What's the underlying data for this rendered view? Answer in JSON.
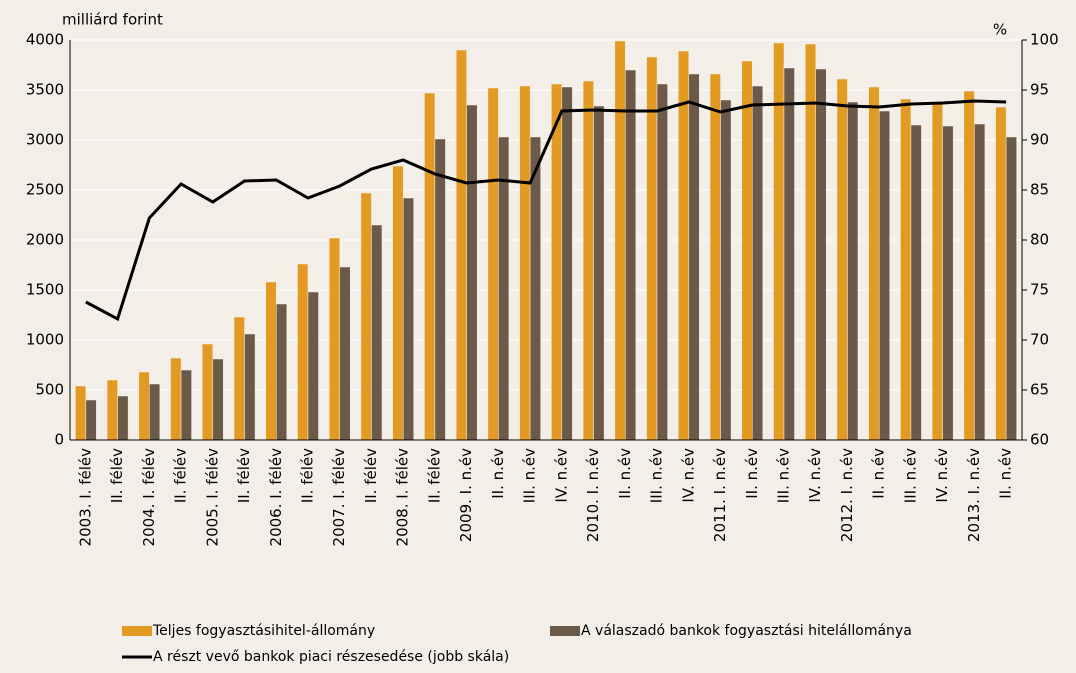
{
  "chart_data": {
    "type": "bar-line",
    "y_label": "milliárd forint",
    "y2_label": "%",
    "categories": [
      "2003. I. félév",
      "II. félév",
      "2004. I. félév",
      "II. félév",
      "2005. I. félév",
      "II. félév",
      "2006. I. félév",
      "II. félév",
      "2007. I. félév",
      "II. félév",
      "2008. I. félév",
      "II. félév",
      "2009. I. n.év",
      "II. n.év",
      "III. n.év",
      "IV. n.év",
      "2010. I. n.év",
      "II. n.év",
      "III. n.év",
      "IV. n.év",
      "2011. I. n.év",
      "II. n.év",
      "III. n.év",
      "IV. n.év",
      "2012. I. n.év",
      "II. n.év",
      "III. n.év",
      "IV. n.év",
      "2013. I. n.év",
      "II. n.év"
    ],
    "series": [
      {
        "name": "Teljes fogyasztásihitel-állomány",
        "type": "bar",
        "color": "#e39a22",
        "values": [
          540,
          600,
          680,
          820,
          960,
          1230,
          1580,
          1760,
          2020,
          2470,
          2740,
          3470,
          3900,
          3520,
          3540,
          3560,
          3590,
          3990,
          3830,
          3890,
          3660,
          3790,
          3970,
          3960,
          3610,
          3530,
          3410,
          3380,
          3490,
          3330
        ]
      },
      {
        "name": "A válaszadó bankok fogyasztási hitelállománya",
        "type": "bar",
        "color": "#6b5949",
        "values": [
          400,
          440,
          560,
          700,
          810,
          1060,
          1360,
          1480,
          1730,
          2150,
          2420,
          3010,
          3350,
          3030,
          3030,
          3530,
          3340,
          3700,
          3560,
          3660,
          3400,
          3540,
          3720,
          3710,
          3380,
          3290,
          3150,
          3140,
          3160,
          3030
        ]
      },
      {
        "name": "A részt vevő bankok piaci részesedése (jobb skála)",
        "type": "line",
        "axis": "y2",
        "color": "#000000",
        "values": [
          73.8,
          72.1,
          82.2,
          85.6,
          83.8,
          85.9,
          86.0,
          84.2,
          85.4,
          87.1,
          88.0,
          86.6,
          85.7,
          86.0,
          85.7,
          92.9,
          93.0,
          92.9,
          92.9,
          93.8,
          92.8,
          93.5,
          93.6,
          93.7,
          93.4,
          93.3,
          93.6,
          93.7,
          93.9,
          93.8
        ]
      }
    ],
    "ylim": [
      0,
      4000
    ],
    "yticks": [
      0,
      500,
      1000,
      1500,
      2000,
      2500,
      3000,
      3500,
      4000
    ],
    "y2lim": [
      60,
      100
    ],
    "y2ticks": [
      60,
      65,
      70,
      75,
      80,
      85,
      90,
      95,
      100
    ],
    "grid": true
  }
}
